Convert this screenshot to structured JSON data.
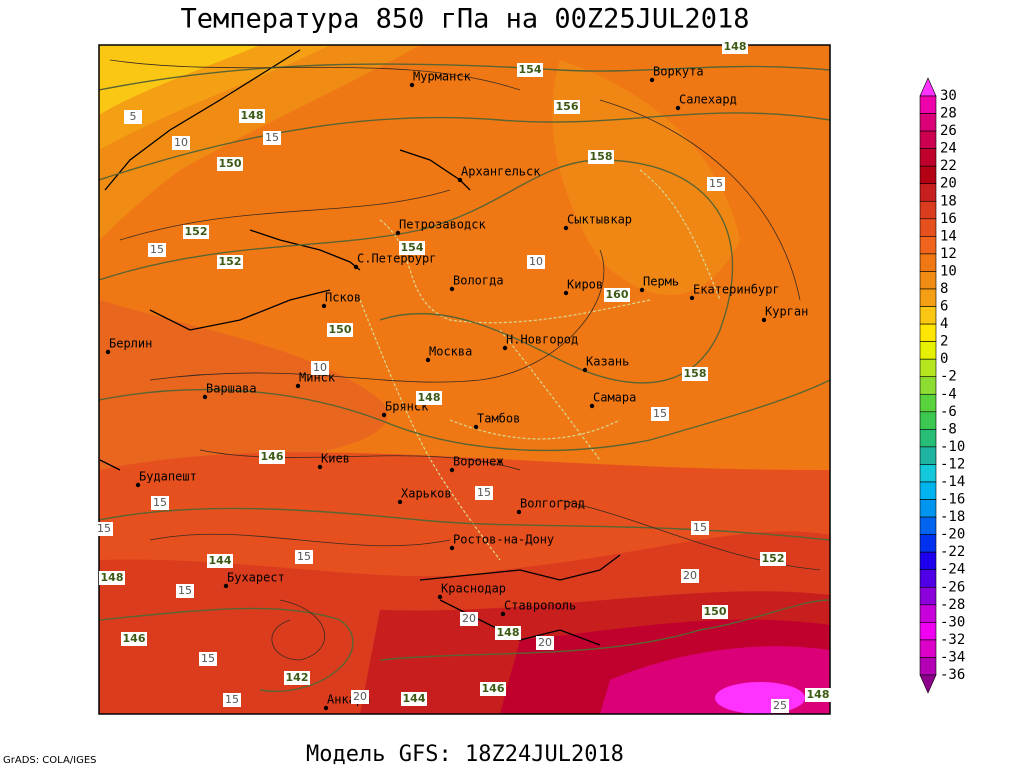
{
  "title": "Температура 850 гПа на 00Z25JUL2018",
  "footer": "Модель GFS: 18Z24JUL2018",
  "credit": "GrADS: COLA/IGES",
  "colorbar": {
    "levels": [
      30,
      28,
      26,
      24,
      22,
      20,
      18,
      16,
      14,
      12,
      10,
      8,
      6,
      4,
      2,
      0,
      -2,
      -4,
      -6,
      -8,
      -10,
      -12,
      -14,
      -16,
      -18,
      -20,
      -22,
      -24,
      -26,
      -28,
      -30,
      -32,
      -34,
      -36
    ],
    "colors": [
      "#ff32ff",
      "#ee00aa",
      "#dc0078",
      "#cd0050",
      "#c0002d",
      "#b40014",
      "#c81e1e",
      "#dc3c1e",
      "#e6501e",
      "#f0641e",
      "#f07814",
      "#f08c14",
      "#f5a014",
      "#fac814",
      "#ffe600",
      "#e6f000",
      "#b4e61e",
      "#8cdc32",
      "#5ad23c",
      "#3cc850",
      "#28be78",
      "#1eb4a0",
      "#14c8dc",
      "#00b4f0",
      "#0096f0",
      "#0064f0",
      "#0032f0",
      "#1e00f0",
      "#5000e6",
      "#8c00dc",
      "#c800dc",
      "#f000f0",
      "#dc00c8",
      "#b400b4",
      "#8c008c"
    ]
  },
  "cities": [
    "Мурманск",
    "Воркута",
    "Салехард",
    "Архангельск",
    "Петрозаводск",
    "Сыктывкар",
    "С.Петербург",
    "Вологда",
    "Киров",
    "Пермь",
    "Екатеринбург",
    "Курган",
    "Псков",
    "Берлин",
    "Москва",
    "Н.Новгород",
    "Казань",
    "Минск",
    "Варшава",
    "Брянск",
    "Самара",
    "Тамбов",
    "Киев",
    "Воронеж",
    "Будапешт",
    "Харьков",
    "Волгоград",
    "Ростов-на-Дону",
    "Бухарест",
    "Краснодар",
    "Ставрополь",
    "Анкара"
  ],
  "height_labels": [
    148,
    150,
    152,
    152,
    154,
    156,
    158,
    154,
    160,
    150,
    148,
    146,
    144,
    148,
    146,
    142,
    144,
    146,
    148,
    158,
    152,
    150,
    148,
    148
  ],
  "temperature_labels": [
    5,
    10,
    15,
    15,
    10,
    10,
    15,
    15,
    15,
    15,
    20,
    15,
    15,
    15,
    15,
    15,
    15,
    20,
    20,
    20,
    25
  ]
}
